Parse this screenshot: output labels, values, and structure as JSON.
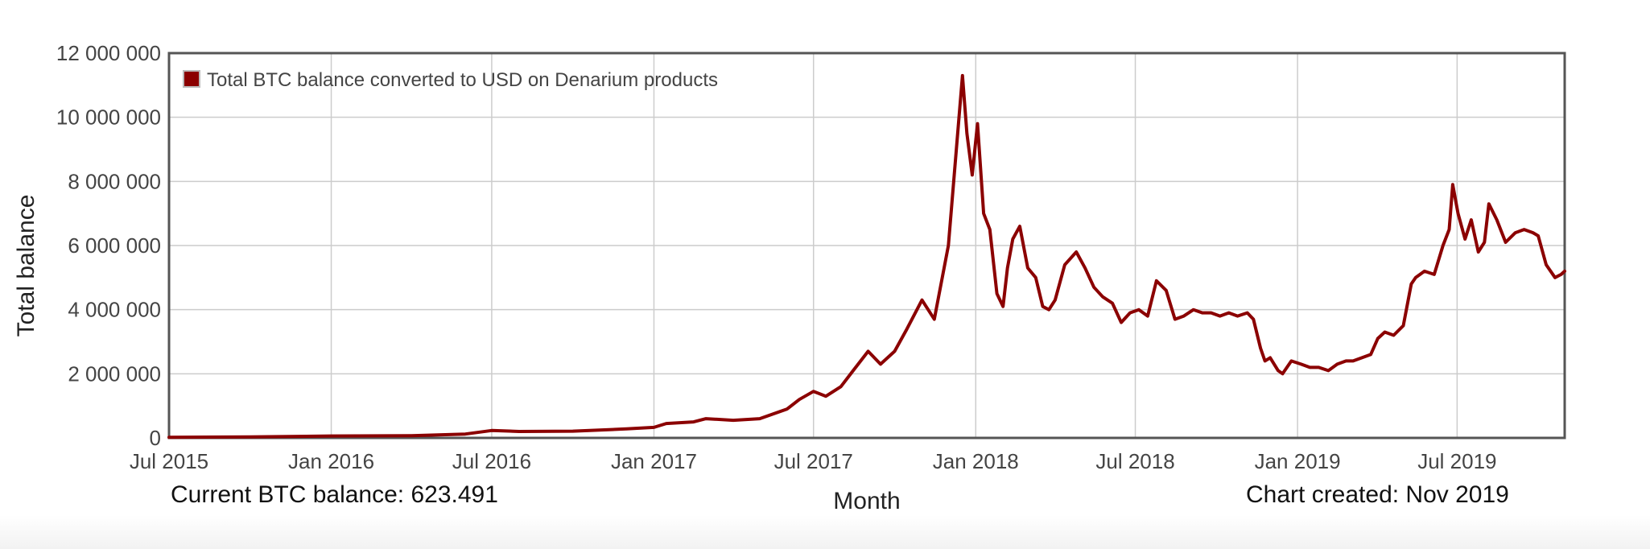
{
  "chart_data": {
    "type": "line",
    "xlabel": "Month",
    "ylabel": "Total balance",
    "ylim": [
      0,
      12000000
    ],
    "xlim": [
      "2015-07-01",
      "2019-10-31"
    ],
    "grid": true,
    "legend_placement": "top-left",
    "x_ticks": [
      "Jul 2015",
      "Jan 2016",
      "Jul 2016",
      "Jan 2017",
      "Jul 2017",
      "Jan 2018",
      "Jul 2018",
      "Jan 2019",
      "Jul 2019"
    ],
    "y_ticks": [
      "0",
      "2 000 000",
      "4 000 000",
      "6 000 000",
      "8 000 000",
      "10 000 000",
      "12 000 000"
    ],
    "series": [
      {
        "name": "Total BTC balance converted to USD on Denarium products",
        "color": "#8b0000",
        "x": [
          "2015-07-01",
          "2015-10-01",
          "2016-01-01",
          "2016-04-01",
          "2016-06-01",
          "2016-07-01",
          "2016-08-01",
          "2016-10-01",
          "2016-12-01",
          "2017-01-01",
          "2017-01-15",
          "2017-02-15",
          "2017-03-01",
          "2017-04-01",
          "2017-05-01",
          "2017-06-01",
          "2017-06-15",
          "2017-07-01",
          "2017-07-15",
          "2017-08-01",
          "2017-08-15",
          "2017-09-01",
          "2017-09-15",
          "2017-10-01",
          "2017-10-15",
          "2017-11-01",
          "2017-11-15",
          "2017-12-01",
          "2017-12-10",
          "2017-12-17",
          "2017-12-22",
          "2017-12-28",
          "2018-01-03",
          "2018-01-10",
          "2018-01-17",
          "2018-01-25",
          "2018-02-01",
          "2018-02-06",
          "2018-02-12",
          "2018-02-20",
          "2018-03-01",
          "2018-03-10",
          "2018-03-18",
          "2018-03-25",
          "2018-04-01",
          "2018-04-12",
          "2018-04-25",
          "2018-05-05",
          "2018-05-15",
          "2018-05-25",
          "2018-06-05",
          "2018-06-15",
          "2018-06-25",
          "2018-07-05",
          "2018-07-15",
          "2018-07-25",
          "2018-08-05",
          "2018-08-15",
          "2018-08-25",
          "2018-09-05",
          "2018-09-15",
          "2018-09-25",
          "2018-10-05",
          "2018-10-15",
          "2018-10-25",
          "2018-11-05",
          "2018-11-12",
          "2018-11-20",
          "2018-11-25",
          "2018-12-01",
          "2018-12-10",
          "2018-12-15",
          "2018-12-25",
          "2019-01-05",
          "2019-01-15",
          "2019-01-25",
          "2019-02-05",
          "2019-02-15",
          "2019-02-25",
          "2019-03-05",
          "2019-03-15",
          "2019-03-25",
          "2019-04-02",
          "2019-04-10",
          "2019-04-20",
          "2019-05-01",
          "2019-05-10",
          "2019-05-15",
          "2019-05-25",
          "2019-06-05",
          "2019-06-15",
          "2019-06-22",
          "2019-06-26",
          "2019-07-02",
          "2019-07-10",
          "2019-07-17",
          "2019-07-25",
          "2019-08-01",
          "2019-08-06",
          "2019-08-15",
          "2019-08-25",
          "2019-09-05",
          "2019-09-15",
          "2019-09-25",
          "2019-10-01",
          "2019-10-10",
          "2019-10-20",
          "2019-10-27",
          "2019-10-31"
        ],
        "values": [
          20000,
          30000,
          60000,
          70000,
          120000,
          230000,
          200000,
          210000,
          280000,
          330000,
          450000,
          500000,
          600000,
          550000,
          600000,
          900000,
          1200000,
          1450000,
          1300000,
          1600000,
          2100000,
          2700000,
          2300000,
          2700000,
          3400000,
          4300000,
          3700000,
          6000000,
          9000000,
          11300000,
          9500000,
          8200000,
          9800000,
          7000000,
          6500000,
          4500000,
          4100000,
          5300000,
          6200000,
          6600000,
          5300000,
          5000000,
          4100000,
          4000000,
          4300000,
          5400000,
          5800000,
          5300000,
          4700000,
          4400000,
          4200000,
          3600000,
          3900000,
          4000000,
          3800000,
          4900000,
          4600000,
          3700000,
          3800000,
          4000000,
          3900000,
          3900000,
          3800000,
          3900000,
          3800000,
          3900000,
          3700000,
          2800000,
          2400000,
          2500000,
          2100000,
          2000000,
          2400000,
          2300000,
          2200000,
          2200000,
          2100000,
          2300000,
          2400000,
          2400000,
          2500000,
          2600000,
          3100000,
          3300000,
          3200000,
          3500000,
          4800000,
          5000000,
          5200000,
          5100000,
          6000000,
          6500000,
          7900000,
          7000000,
          6200000,
          6800000,
          5800000,
          6100000,
          7300000,
          6800000,
          6100000,
          6400000,
          6500000,
          6400000,
          6300000,
          5400000,
          5000000,
          5100000,
          5200000
        ]
      }
    ]
  },
  "footer": {
    "current_balance": "Current BTC balance: 623.491",
    "chart_created": "Chart created: Nov 2019"
  }
}
